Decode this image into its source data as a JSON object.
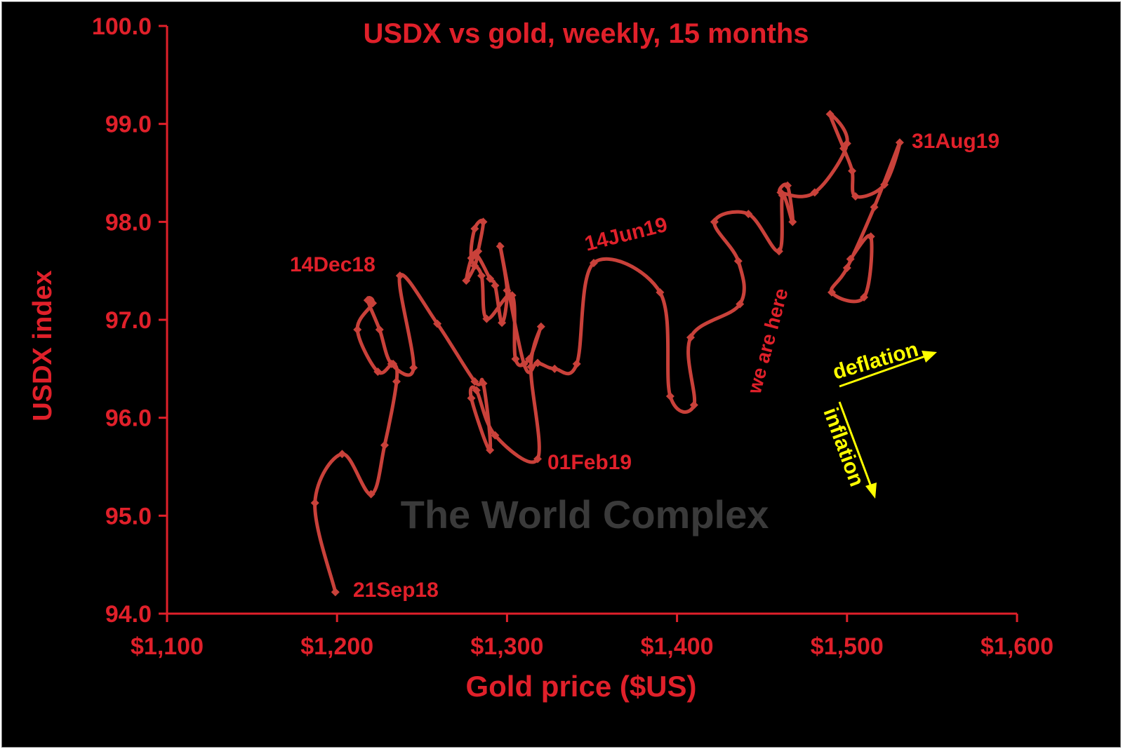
{
  "chart_data": {
    "type": "line",
    "title": "USDX vs gold, weekly, 15 months",
    "xlabel": "Gold price ($US)",
    "ylabel": "USDX index",
    "xlim": [
      1100,
      1600
    ],
    "ylim": [
      94.0,
      100.0
    ],
    "x_ticks": [
      1100,
      1200,
      1300,
      1400,
      1500,
      1600
    ],
    "x_tick_labels": [
      "$1,100",
      "$1,200",
      "$1,300",
      "$1,400",
      "$1,500",
      "$1,600"
    ],
    "y_ticks": [
      94,
      95,
      96,
      97,
      98,
      99,
      100
    ],
    "y_tick_labels": [
      "94.0",
      "95.0",
      "96.0",
      "97.0",
      "98.0",
      "99.0",
      "100.0"
    ],
    "grid": false,
    "series": [
      {
        "points": [
          [
            1199,
            94.22
          ],
          [
            1187,
            95.13
          ],
          [
            1203,
            95.63
          ],
          [
            1220,
            95.22
          ],
          [
            1228,
            95.72
          ],
          [
            1235,
            96.37
          ],
          [
            1233,
            96.55
          ],
          [
            1224,
            96.47
          ],
          [
            1212,
            96.9
          ],
          [
            1221,
            97.17
          ],
          [
            1218,
            97.2
          ],
          [
            1225,
            96.9
          ],
          [
            1232,
            96.55
          ],
          [
            1245,
            96.51
          ],
          [
            1237,
            97.45
          ],
          [
            1259,
            96.96
          ],
          [
            1281,
            96.37
          ],
          [
            1286,
            96.35
          ],
          [
            1290,
            95.67
          ],
          [
            1279,
            96.2
          ],
          [
            1282,
            96.28
          ],
          [
            1293,
            95.82
          ],
          [
            1318,
            95.58
          ],
          [
            1314,
            96.52
          ],
          [
            1320,
            96.93
          ],
          [
            1313,
            96.6
          ],
          [
            1305,
            96.6
          ],
          [
            1303,
            97.25
          ],
          [
            1288,
            97.01
          ],
          [
            1285,
            97.45
          ],
          [
            1279,
            97.63
          ],
          [
            1281,
            97.93
          ],
          [
            1286,
            98.0
          ],
          [
            1283,
            97.7
          ],
          [
            1281,
            97.55
          ],
          [
            1276,
            97.4
          ],
          [
            1281,
            97.67
          ],
          [
            1290,
            97.42
          ],
          [
            1293,
            97.35
          ],
          [
            1297,
            96.97
          ],
          [
            1300,
            97.3
          ],
          [
            1296,
            97.75
          ],
          [
            1310,
            96.55
          ],
          [
            1318,
            96.56
          ],
          [
            1328,
            96.5
          ],
          [
            1341,
            96.55
          ],
          [
            1351,
            97.58
          ],
          [
            1390,
            97.28
          ],
          [
            1396,
            96.22
          ],
          [
            1410,
            96.13
          ],
          [
            1408,
            96.82
          ],
          [
            1437,
            97.16
          ],
          [
            1436,
            97.6
          ],
          [
            1422,
            98.0
          ],
          [
            1442,
            98.08
          ],
          [
            1460,
            97.7
          ],
          [
            1462,
            98.27
          ],
          [
            1468,
            98.0
          ],
          [
            1465,
            98.37
          ],
          [
            1461,
            98.3
          ],
          [
            1481,
            98.3
          ],
          [
            1500,
            98.8
          ],
          [
            1490,
            99.1
          ],
          [
            1498,
            98.75
          ],
          [
            1503,
            98.52
          ],
          [
            1505,
            98.26
          ],
          [
            1522,
            98.38
          ],
          [
            1531,
            98.81
          ],
          [
            1516,
            98.15
          ],
          [
            1500,
            97.53
          ],
          [
            1491,
            97.28
          ],
          [
            1510,
            97.23
          ],
          [
            1514,
            97.85
          ],
          [
            1502,
            97.62
          ]
        ]
      }
    ],
    "annotations": [
      {
        "text": "21Sep18",
        "x": 1199,
        "y": 94.22
      },
      {
        "text": "14Dec18",
        "x": 1237,
        "y": 97.45
      },
      {
        "text": "01Feb19",
        "x": 1318,
        "y": 95.58
      },
      {
        "text": "14Jun19",
        "x": 1351,
        "y": 97.58
      },
      {
        "text": "31Aug19",
        "x": 1531,
        "y": 98.81
      },
      {
        "text": "we are here",
        "x": 1460,
        "y": 97.7
      }
    ],
    "arrows": [
      {
        "label": "deflation",
        "direction": "up-right"
      },
      {
        "label": "inflation",
        "direction": "down"
      }
    ],
    "watermark": "The World Complex"
  },
  "colors": {
    "background": "#000000",
    "axis": "#e0202a",
    "line": "#c9413a",
    "arrow": "#ffff00",
    "watermark": "#3a3a3a"
  }
}
